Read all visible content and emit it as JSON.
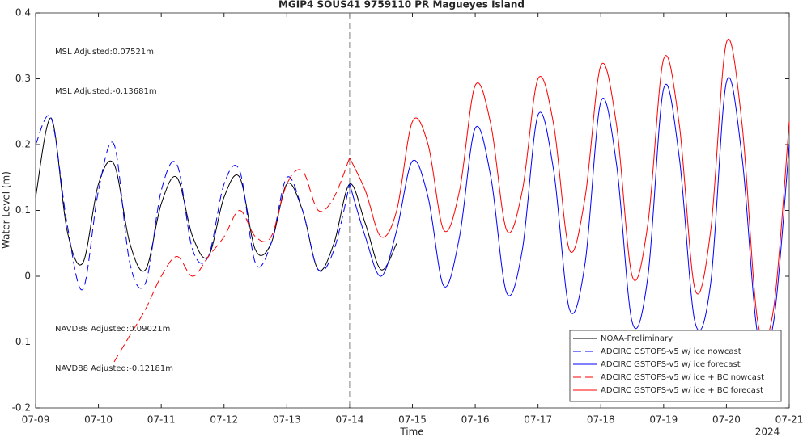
{
  "chart_data": {
    "type": "line",
    "title": "MGIP4 SOUS41 9759110 PR Magueyes Island",
    "xlabel": "Time",
    "ylabel": "Water Level (m)",
    "x_annotation": "2024",
    "x": [
      0,
      0.25,
      0.5,
      0.75,
      1,
      1.25,
      1.5,
      1.75,
      2,
      2.25,
      2.5,
      2.75,
      3,
      3.25,
      3.5,
      3.75,
      4,
      4.25,
      4.5,
      4.75,
      5,
      5.25,
      5.5,
      5.75,
      6,
      6.25,
      6.5,
      6.75,
      7,
      7.25,
      7.5,
      7.75,
      8,
      8.25,
      8.5,
      8.75,
      9,
      9.25,
      9.5,
      9.75,
      10,
      10.25,
      10.5,
      10.75,
      11,
      11.25,
      11.5,
      11.75,
      12
    ],
    "xlim": [
      0,
      12
    ],
    "xticks": [
      {
        "value": 0,
        "label": "07-09"
      },
      {
        "value": 1,
        "label": "07-10"
      },
      {
        "value": 2,
        "label": "07-11"
      },
      {
        "value": 3,
        "label": "07-12"
      },
      {
        "value": 4,
        "label": "07-13"
      },
      {
        "value": 5,
        "label": "07-14"
      },
      {
        "value": 6,
        "label": "07-15"
      },
      {
        "value": 7,
        "label": "07-16"
      },
      {
        "value": 8,
        "label": "07-17"
      },
      {
        "value": 9,
        "label": "07-18"
      },
      {
        "value": 10,
        "label": "07-19"
      },
      {
        "value": 11,
        "label": "07-20"
      },
      {
        "value": 12,
        "label": "07-21"
      }
    ],
    "ylim": [
      -0.2,
      0.4
    ],
    "yticks": [
      -0.2,
      -0.1,
      0,
      0.1,
      0.2,
      0.3,
      0.4
    ],
    "vline_x": 5,
    "legend": "lower right",
    "annotations": [
      {
        "text": "MSL Adjusted:0.07521m",
        "color": "#0000ff"
      },
      {
        "text": "MSL Adjusted:-0.13681m",
        "color": "#ff0000"
      },
      {
        "text": "NAVD88 Adjusted:0.09021m",
        "color": "#0000ff"
      },
      {
        "text": "NAVD88 Adjusted:-0.12181m",
        "color": "#ff0000"
      }
    ],
    "series": [
      {
        "name": "NOAA-Preliminary",
        "color": "#000000",
        "dash": false,
        "values": [
          0.12,
          0.24,
          0.07,
          0.02,
          0.14,
          0.17,
          0.05,
          0.01,
          0.11,
          0.15,
          0.06,
          0.03,
          0.12,
          0.15,
          0.04,
          0.05,
          0.14,
          0.1,
          0.01,
          0.05,
          0.14,
          0.08,
          0.01,
          0.05,
          null,
          null,
          null,
          null,
          null,
          null,
          null,
          null,
          null,
          null,
          null,
          null,
          null,
          null,
          null,
          null,
          null,
          null,
          null,
          null,
          null,
          null,
          null,
          null,
          null
        ]
      },
      {
        "name": "ADCIRC GSTOFS-v5 w/ ice nowcast",
        "color": "#0000ff",
        "dash": true,
        "values": [
          0.2,
          0.24,
          0.08,
          -0.02,
          0.13,
          0.2,
          0.02,
          -0.01,
          0.13,
          0.17,
          0.04,
          0.03,
          0.14,
          0.16,
          0.02,
          0.05,
          0.15,
          0.1,
          0.01,
          0.04,
          0.14,
          null,
          null,
          null,
          null,
          null,
          null,
          null,
          null,
          null,
          null,
          null,
          null,
          null,
          null,
          null,
          null,
          null,
          null,
          null,
          null,
          null,
          null,
          null,
          null,
          null,
          null,
          null,
          null
        ]
      },
      {
        "name": "ADCIRC GSTOFS-v5 w/ ice forecast",
        "color": "#0000ff",
        "dash": false,
        "values": [
          null,
          null,
          null,
          null,
          null,
          null,
          null,
          null,
          null,
          null,
          null,
          null,
          null,
          null,
          null,
          null,
          null,
          null,
          null,
          null,
          0.14,
          0.06,
          0.0,
          0.07,
          0.175,
          0.12,
          -0.015,
          0.06,
          0.225,
          0.15,
          -0.025,
          0.04,
          0.245,
          0.16,
          -0.05,
          0.02,
          0.265,
          0.17,
          -0.07,
          0.0,
          0.285,
          0.18,
          -0.07,
          -0.01,
          0.295,
          0.18,
          -0.09,
          -0.07,
          0.2
        ]
      },
      {
        "name": "ADCIRC GSTOFS-v5 w/ ice + BC nowcast",
        "color": "#ff0000",
        "dash": true,
        "values": [
          null,
          null,
          null,
          null,
          null,
          -0.13,
          -0.09,
          -0.05,
          0.0,
          0.03,
          0.0,
          0.03,
          0.06,
          0.1,
          0.06,
          0.06,
          0.14,
          0.16,
          0.1,
          0.12,
          0.18,
          null,
          null,
          null,
          null,
          null,
          null,
          null,
          null,
          null,
          null,
          null,
          null,
          null,
          null,
          null,
          null,
          null,
          null,
          null,
          null,
          null,
          null,
          null,
          null,
          null,
          null,
          null,
          null
        ]
      },
      {
        "name": "ADCIRC GSTOFS-v5 w/ ice + BC forecast",
        "color": "#ff0000",
        "dash": false,
        "values": [
          null,
          null,
          null,
          null,
          null,
          null,
          null,
          null,
          null,
          null,
          null,
          null,
          null,
          null,
          null,
          null,
          null,
          null,
          null,
          null,
          0.18,
          0.13,
          0.06,
          0.1,
          0.235,
          0.2,
          0.07,
          0.13,
          0.29,
          0.23,
          0.07,
          0.13,
          0.3,
          0.23,
          0.04,
          0.12,
          0.32,
          0.23,
          0.0,
          0.08,
          0.33,
          0.23,
          -0.02,
          0.07,
          0.355,
          0.23,
          -0.07,
          -0.05,
          0.235
        ]
      }
    ]
  }
}
